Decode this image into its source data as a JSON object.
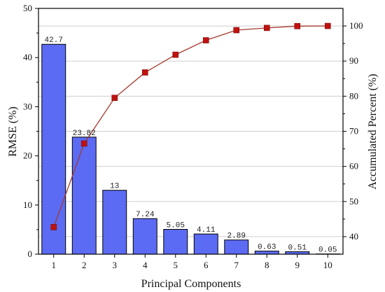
{
  "chart_data": {
    "type": "bar+line",
    "categories": [
      "1",
      "2",
      "3",
      "4",
      "5",
      "6",
      "7",
      "8",
      "9",
      "10"
    ],
    "series": [
      {
        "type": "bar",
        "axis": "left",
        "values": [
          42.7,
          23.82,
          13,
          7.24,
          5.05,
          4.11,
          2.89,
          0.63,
          0.51,
          0.05
        ],
        "labels": [
          "42.7",
          "23.82",
          "13",
          "7.24",
          "5.05",
          "4.11",
          "2.89",
          "0.63",
          "0.51",
          "0.05"
        ],
        "color": "#5b6bf3"
      },
      {
        "type": "line",
        "axis": "right",
        "values": [
          42.7,
          66.52,
          79.52,
          86.76,
          91.81,
          95.92,
          98.81,
          99.44,
          99.95,
          100
        ],
        "color": "#c0120f",
        "line_color": "#a43a2f"
      }
    ],
    "xlabel": "Principal Components",
    "ylabel_left": "RMSE (%)",
    "ylabel_right": "Accumulated Percent (%)",
    "ylim_left": [
      0,
      50
    ],
    "yticks_left": [
      "0",
      "10",
      "20",
      "30",
      "40",
      "50"
    ],
    "ylim_right": [
      35,
      105
    ],
    "yticks_right": [
      "40",
      "50",
      "60",
      "70",
      "80",
      "90",
      "100"
    ],
    "grid": true
  }
}
